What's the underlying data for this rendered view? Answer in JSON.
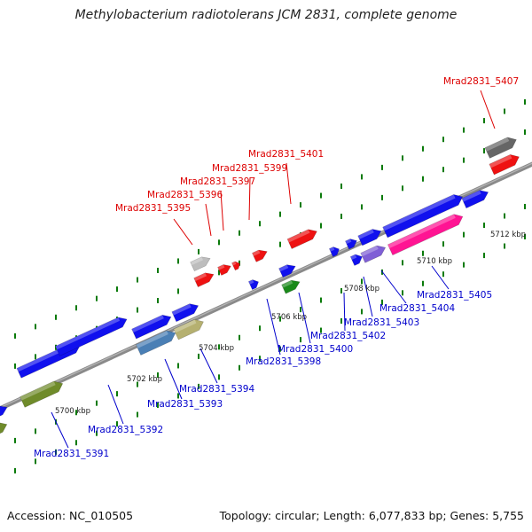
{
  "title": "Methylobacterium radiotolerans JCM 2831, complete genome",
  "footer": {
    "accession": "Accession: NC_010505",
    "summary": "Topology: circular; Length: 6,077,833 bp; Genes: 5,755"
  },
  "colors": {
    "upper_label": "#dd0000",
    "lower_label": "#0000cc",
    "tick": "#0a7a0a",
    "backbone": "#7f7f7f"
  },
  "ticks": [
    {
      "label": "5700 kbp",
      "kbp": 5700
    },
    {
      "label": "5702 kbp",
      "kbp": 5702
    },
    {
      "label": "5704 kbp",
      "kbp": 5704
    },
    {
      "label": "5706 kbp",
      "kbp": 5706
    },
    {
      "label": "5708 kbp",
      "kbp": 5708
    },
    {
      "label": "5710 kbp",
      "kbp": 5710
    },
    {
      "label": "5712 kbp",
      "kbp": 5712
    }
  ],
  "upper_labels": [
    {
      "name": "Mrad2831_5395"
    },
    {
      "name": "Mrad2831_5396"
    },
    {
      "name": "Mrad2831_5397"
    },
    {
      "name": "Mrad2831_5399"
    },
    {
      "name": "Mrad2831_5401"
    },
    {
      "name": "Mrad2831_5407"
    }
  ],
  "lower_labels": [
    {
      "name": "Mrad2831_5391"
    },
    {
      "name": "Mrad2831_5392"
    },
    {
      "name": "Mrad2831_5393"
    },
    {
      "name": "Mrad2831_5394"
    },
    {
      "name": "Mrad2831_5398"
    },
    {
      "name": "Mrad2831_5400"
    },
    {
      "name": "Mrad2831_5402"
    },
    {
      "name": "Mrad2831_5403"
    },
    {
      "name": "Mrad2831_5404"
    },
    {
      "name": "Mrad2831_5405"
    }
  ]
}
